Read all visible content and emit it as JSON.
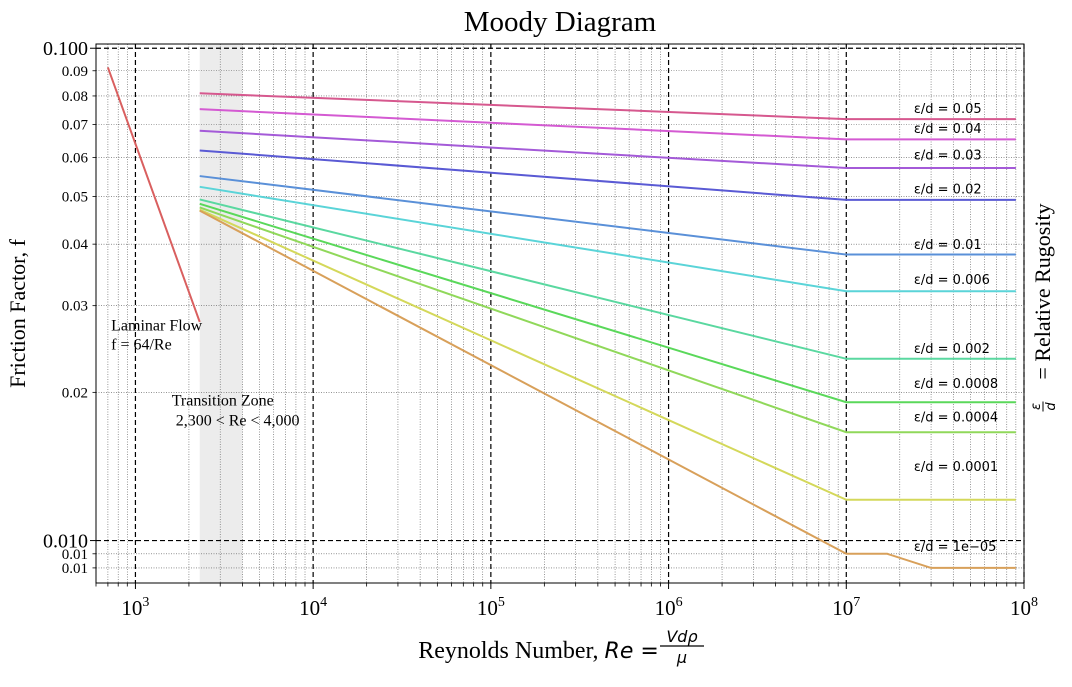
{
  "chart_data": {
    "type": "line",
    "title": "Moody Diagram",
    "xlabel_text": "Reynolds Number, ",
    "xlabel_math": {
      "lhs": "Re",
      "eq": " = ",
      "num": "Vdρ",
      "den": "μ"
    },
    "ylabel": "Friction Factor, f",
    "right_label_math": {
      "num": "ε",
      "den": "d"
    },
    "right_label_text": " = Relative Rugosity",
    "x_scale": "log",
    "y_scale": "log",
    "xlim": [
      600,
      100000000
    ],
    "ylim": [
      0.0082,
      0.102
    ],
    "grid": {
      "major": "dashed",
      "minor": "dotted"
    },
    "x_ticks": [
      {
        "value": 1000,
        "base": "10",
        "exp": "3"
      },
      {
        "value": 10000,
        "base": "10",
        "exp": "4"
      },
      {
        "value": 100000,
        "base": "10",
        "exp": "5"
      },
      {
        "value": 1000000,
        "base": "10",
        "exp": "6"
      },
      {
        "value": 10000000,
        "base": "10",
        "exp": "7"
      },
      {
        "value": 100000000,
        "base": "10",
        "exp": "8"
      }
    ],
    "y_major_ticks": [
      {
        "value": 0.01,
        "label": "0.010"
      },
      {
        "value": 0.1,
        "label": "0.100"
      }
    ],
    "y_minor_ticks": [
      {
        "value": 0.02,
        "label": "0.02"
      },
      {
        "value": 0.03,
        "label": "0.03"
      },
      {
        "value": 0.04,
        "label": "0.04"
      },
      {
        "value": 0.05,
        "label": "0.05"
      },
      {
        "value": 0.06,
        "label": "0.06"
      },
      {
        "value": 0.07,
        "label": "0.07"
      },
      {
        "value": 0.08,
        "label": "0.08"
      },
      {
        "value": 0.09,
        "label": "0.09"
      },
      {
        "value": 0.0094,
        "label": "0.01"
      },
      {
        "value": 0.0088,
        "label": "0.01"
      }
    ],
    "transition_zone": {
      "x_range": [
        2300,
        4000
      ],
      "label_line1": "Transition Zone",
      "label_line2": " 2,300 <  Re < 4,000",
      "label_anchor": [
        1600,
        0.0188
      ]
    },
    "laminar": {
      "label_line1": "Laminar Flow",
      "label_line2": "f = 64/Re",
      "color": "#d95f5f",
      "x": [
        700,
        2300
      ],
      "y": [
        0.0914,
        0.0278
      ],
      "label_anchor": [
        730,
        0.0267
      ]
    },
    "series": [
      {
        "name": "ε/d = 0.05",
        "label_prefix": "ε/d = ",
        "label_value": "0.05",
        "color": "#d6588e",
        "label_y": 0.0752,
        "x": [
          2300,
          10000000,
          90000000
        ],
        "y": [
          0.081,
          0.0718,
          0.0718
        ]
      },
      {
        "name": "ε/d = 0.04",
        "label_prefix": "ε/d = ",
        "label_value": "0.04",
        "color": "#d45ad2",
        "label_y": 0.0685,
        "x": [
          2300,
          10000000,
          90000000
        ],
        "y": [
          0.0752,
          0.0653,
          0.0653
        ]
      },
      {
        "name": "ε/d = 0.03",
        "label_prefix": "ε/d = ",
        "label_value": "0.03",
        "color": "#a45ad8",
        "label_y": 0.0605,
        "x": [
          2300,
          10000000,
          90000000
        ],
        "y": [
          0.068,
          0.0571,
          0.0571
        ]
      },
      {
        "name": "ε/d = 0.02",
        "label_prefix": "ε/d = ",
        "label_value": "0.02",
        "color": "#5a5ad4",
        "label_y": 0.0517,
        "x": [
          2300,
          10000000,
          90000000
        ],
        "y": [
          0.062,
          0.0492,
          0.0492
        ]
      },
      {
        "name": "ε/d = 0.01",
        "label_prefix": "ε/d = ",
        "label_value": "0.01",
        "color": "#5a90d8",
        "label_y": 0.0398,
        "x": [
          2300,
          10000000,
          90000000
        ],
        "y": [
          0.055,
          0.0381,
          0.0381
        ]
      },
      {
        "name": "ε/d = 0.006",
        "label_prefix": "ε/d = ",
        "label_value": "0.006",
        "color": "#5ad4d8",
        "label_y": 0.0338,
        "x": [
          2300,
          10000000,
          90000000
        ],
        "y": [
          0.0523,
          0.0321,
          0.0321
        ]
      },
      {
        "name": "ε/d = 0.002",
        "label_prefix": "ε/d = ",
        "label_value": "0.002",
        "color": "#5ad8a0",
        "label_y": 0.0245,
        "x": [
          2300,
          10000000,
          90000000
        ],
        "y": [
          0.0493,
          0.0234,
          0.0234
        ]
      },
      {
        "name": "ε/d = 0.0008",
        "label_prefix": "ε/d = ",
        "label_value": "0.0008",
        "color": "#5ad85a",
        "label_y": 0.0208,
        "x": [
          2300,
          10000000,
          90000000
        ],
        "y": [
          0.0483,
          0.0191,
          0.0191
        ]
      },
      {
        "name": "ε/d = 0.0004",
        "label_prefix": "ε/d = ",
        "label_value": "0.0004",
        "color": "#90d85a",
        "label_y": 0.0178,
        "x": [
          2300,
          10000000,
          90000000
        ],
        "y": [
          0.0475,
          0.0166,
          0.0166
        ]
      },
      {
        "name": "ε/d = 0.0001",
        "label_prefix": "ε/d = ",
        "label_value": "0.0001",
        "color": "#d4d85a",
        "label_y": 0.0141,
        "x": [
          2300,
          10000000,
          90000000
        ],
        "y": [
          0.047,
          0.0121,
          0.0121
        ]
      },
      {
        "name": "ε/d = 1e−05",
        "label_prefix": "ε/d = ",
        "label_value": "1e−05",
        "color": "#d8a05a",
        "label_y": 0.0097,
        "x": [
          2300,
          10000000,
          17000000,
          30000000,
          90000000
        ],
        "y": [
          0.0468,
          0.0094,
          0.0094,
          0.0088,
          0.0088
        ]
      }
    ]
  }
}
